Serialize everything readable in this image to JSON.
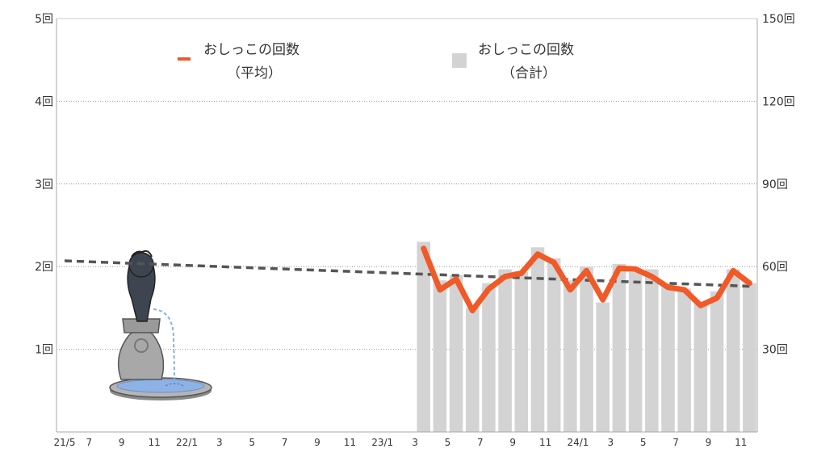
{
  "chart_data": {
    "type": "bar",
    "title": "",
    "xlabel": "",
    "x_ticks": [
      "21/5",
      "7",
      "9",
      "11",
      "22/1",
      "3",
      "5",
      "7",
      "9",
      "11",
      "23/1",
      "3",
      "5",
      "7",
      "9",
      "11",
      "24/1",
      "3",
      "5",
      "7",
      "9",
      "11"
    ],
    "y_left": {
      "ticks": [
        "1回",
        "2回",
        "3回",
        "4回",
        "5回"
      ],
      "ylim": [
        0,
        5
      ]
    },
    "y_right": {
      "ticks": [
        "30回",
        "60回",
        "90回",
        "120回",
        "150回"
      ],
      "ylim": [
        0,
        150
      ]
    },
    "grid": true,
    "legend": {
      "placement": "top",
      "items": [
        {
          "name_line1": "おしっこの回数",
          "name_line2": "（平均）",
          "color": "#f05a28",
          "symbol": "line"
        },
        {
          "name_line1": "おしっこの回数",
          "name_line2": "（合計）",
          "color": "#d3d3d3",
          "symbol": "bar"
        }
      ]
    },
    "categories": [
      "23/2",
      "23/3",
      "23/4",
      "23/5",
      "23/6",
      "23/7",
      "23/8",
      "23/9",
      "23/10",
      "23/11",
      "23/12",
      "24/1",
      "24/2",
      "24/3",
      "24/4",
      "24/5",
      "24/6",
      "24/7",
      "24/8",
      "24/9",
      "24/10"
    ],
    "series": [
      {
        "name": "おしっこの回数（合計）",
        "kind": "bar",
        "axis": "right",
        "color": "#d3d3d3",
        "values": [
          69,
          55,
          57,
          45,
          54,
          59,
          58,
          67,
          63,
          55,
          60,
          47,
          61,
          58,
          59,
          54,
          52,
          47,
          51,
          59,
          54
        ]
      },
      {
        "name": "おしっこの回数（平均）",
        "kind": "line",
        "axis": "left",
        "color": "#f05a28",
        "values": [
          2.22,
          1.72,
          1.85,
          1.47,
          1.73,
          1.88,
          1.92,
          2.15,
          2.05,
          1.72,
          1.95,
          1.6,
          1.98,
          1.97,
          1.88,
          1.75,
          1.72,
          1.53,
          1.62,
          1.95,
          1.8
        ]
      },
      {
        "kind": "trend",
        "axis": "left",
        "color": "#555555",
        "style": "dashed",
        "from": [
          0,
          2.07
        ],
        "to": [
          43,
          1.76
        ]
      }
    ]
  },
  "illustration": {
    "icon": "manneken-pis-fountain-icon"
  }
}
